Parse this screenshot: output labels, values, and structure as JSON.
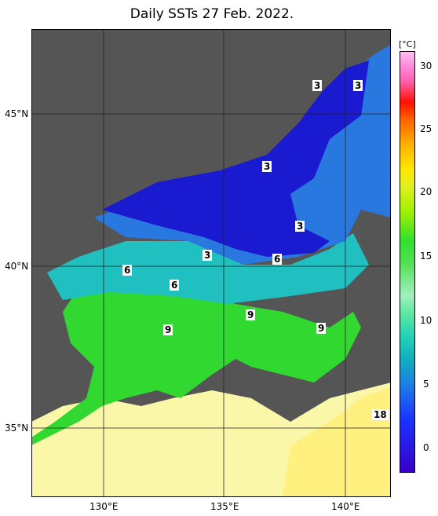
{
  "title": "Daily SSTs 27 Feb. 2022.",
  "lat_labels": [
    "45°N",
    "40°N",
    "35°N"
  ],
  "lon_labels": [
    "130°E",
    "135°E",
    "140°E"
  ],
  "colorbar": {
    "unit": "[°C]",
    "ticks": [
      "30",
      "25",
      "20",
      "15",
      "10",
      "5",
      "0"
    ]
  },
  "contour_labels": [
    "3",
    "3",
    "3",
    "3",
    "3",
    "6",
    "6",
    "6",
    "9",
    "9",
    "9",
    "18"
  ],
  "colors": {
    "land": "#555555",
    "coldest": "#1a1ad0",
    "cold": "#2870e0",
    "mid": "#20c0c0",
    "warm": "#40e040",
    "warmest": "#ffff60"
  }
}
